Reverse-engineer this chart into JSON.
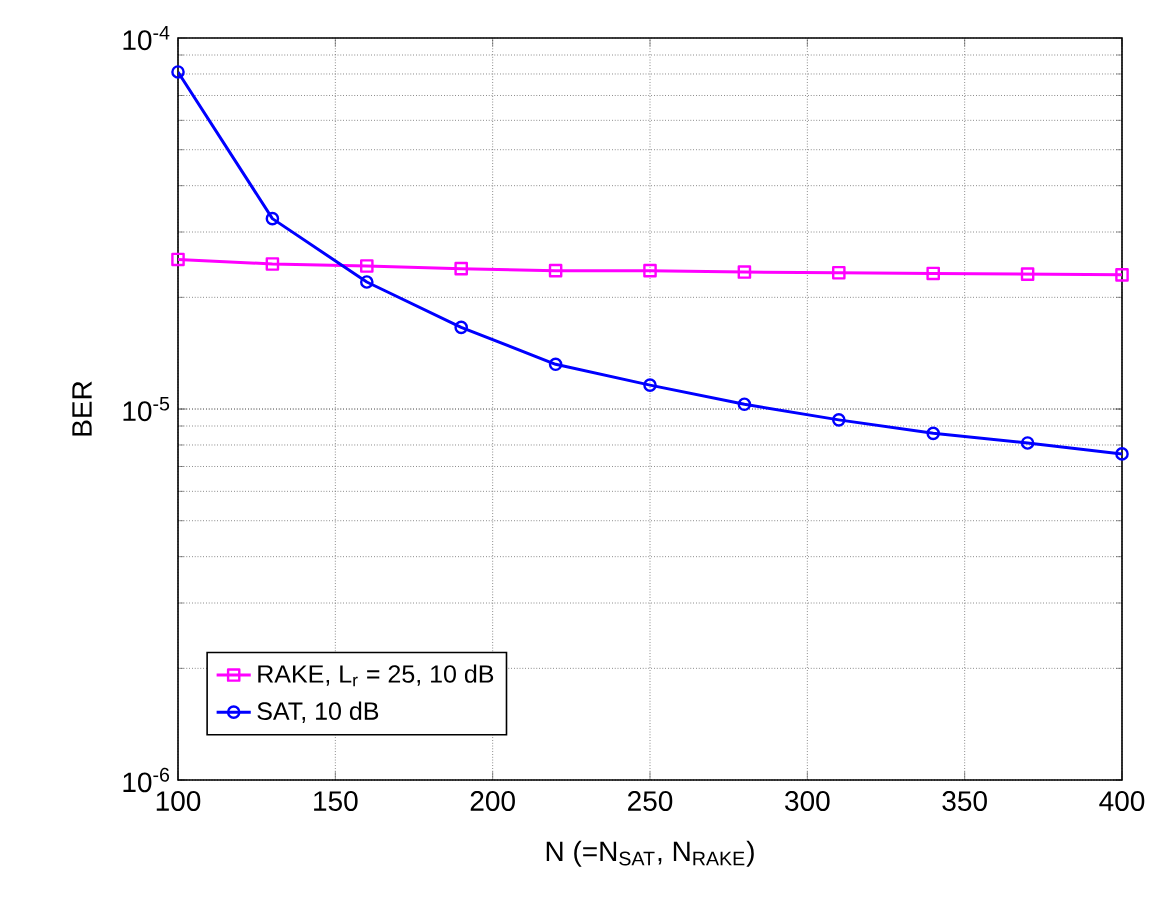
{
  "chart_data": {
    "type": "line",
    "xlabel": "N (=N$_{SAT}$, N$_{RAKE}$)",
    "ylabel": "BER",
    "x": [
      100,
      130,
      160,
      190,
      220,
      250,
      280,
      310,
      340,
      370,
      400
    ],
    "series": [
      {
        "name": "RAKE, L$_{r}$ = 25, 10 dB",
        "color": "#ff00ff",
        "marker": "square",
        "values": [
          2.53e-05,
          2.46e-05,
          2.43e-05,
          2.39e-05,
          2.36e-05,
          2.36e-05,
          2.34e-05,
          2.33e-05,
          2.32e-05,
          2.31e-05,
          2.3e-05
        ]
      },
      {
        "name": "SAT, 10 dB",
        "color": "#0000ff",
        "marker": "circle",
        "values": [
          8.1e-05,
          3.26e-05,
          2.2e-05,
          1.66e-05,
          1.32e-05,
          1.16e-05,
          1.03e-05,
          9.35e-06,
          8.6e-06,
          8.1e-06,
          7.57e-06
        ]
      }
    ],
    "log": "y",
    "xlim": [
      100,
      400
    ],
    "ylim": [
      1e-06,
      0.0001
    ],
    "xticks": [
      100,
      150,
      200,
      250,
      300,
      350,
      400
    ],
    "yticks": [
      {
        "value": 1e-06,
        "label": "10$^{-6}$"
      },
      {
        "value": 1e-05,
        "label": "10$^{-5}$"
      },
      {
        "value": 0.0001,
        "label": "10$^{-4}$"
      }
    ],
    "grid": true,
    "legend": "bottom left",
    "line_style": "solid"
  }
}
